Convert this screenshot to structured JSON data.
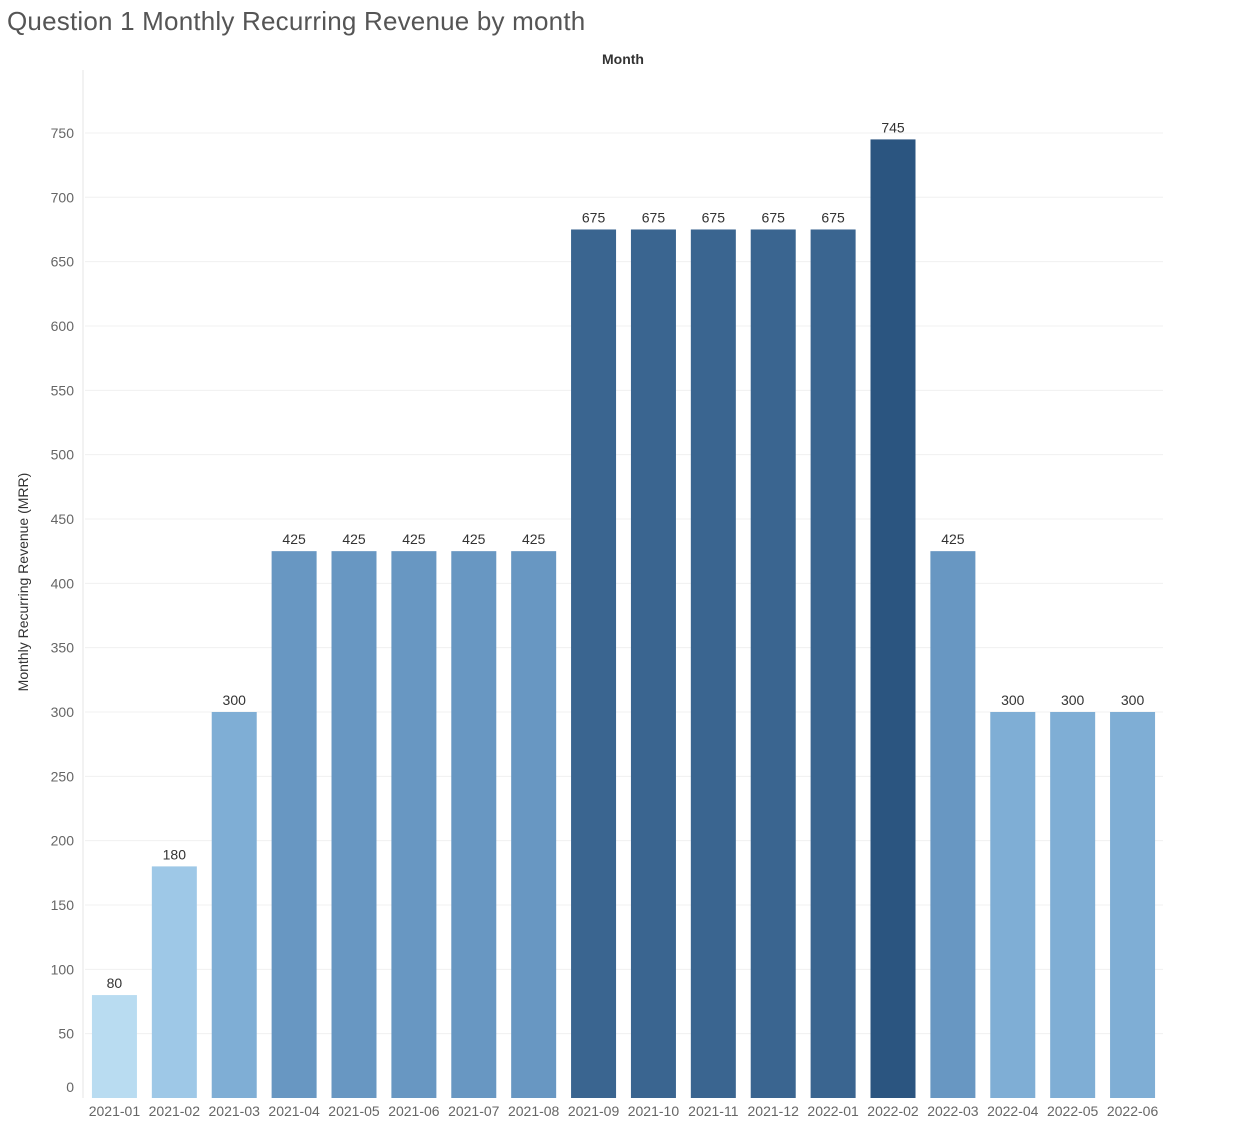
{
  "chart_data": {
    "type": "bar",
    "title": "Question 1 Monthly Recurring Revenue by month",
    "xlabel": "Month",
    "ylabel": "Monthly Recurring Revenue (MRR)",
    "xlabel_position": "top",
    "ylim": [
      0,
      790
    ],
    "yticks": [
      0,
      50,
      100,
      150,
      200,
      250,
      300,
      350,
      400,
      450,
      500,
      550,
      600,
      650,
      700,
      750
    ],
    "grid": true,
    "legend": "none",
    "color_scale": "sequential-blue-by-value",
    "categories": [
      "2021-01",
      "2021-02",
      "2021-03",
      "2021-04",
      "2021-05",
      "2021-06",
      "2021-07",
      "2021-08",
      "2021-09",
      "2021-10",
      "2021-11",
      "2021-12",
      "2022-01",
      "2022-02",
      "2022-03",
      "2022-04",
      "2022-05",
      "2022-06"
    ],
    "values": [
      80,
      180,
      300,
      425,
      425,
      425,
      425,
      425,
      675,
      675,
      675,
      675,
      675,
      745,
      425,
      300,
      300,
      300
    ],
    "colors": [
      "#b9dcf1",
      "#9ec8e7",
      "#7faed5",
      "#6897c2",
      "#6897c2",
      "#6897c2",
      "#6897c2",
      "#6897c2",
      "#3a6590",
      "#3a6590",
      "#3a6590",
      "#3a6590",
      "#3a6590",
      "#2b5580",
      "#6897c2",
      "#7faed5",
      "#7faed5",
      "#7faed5"
    ]
  }
}
